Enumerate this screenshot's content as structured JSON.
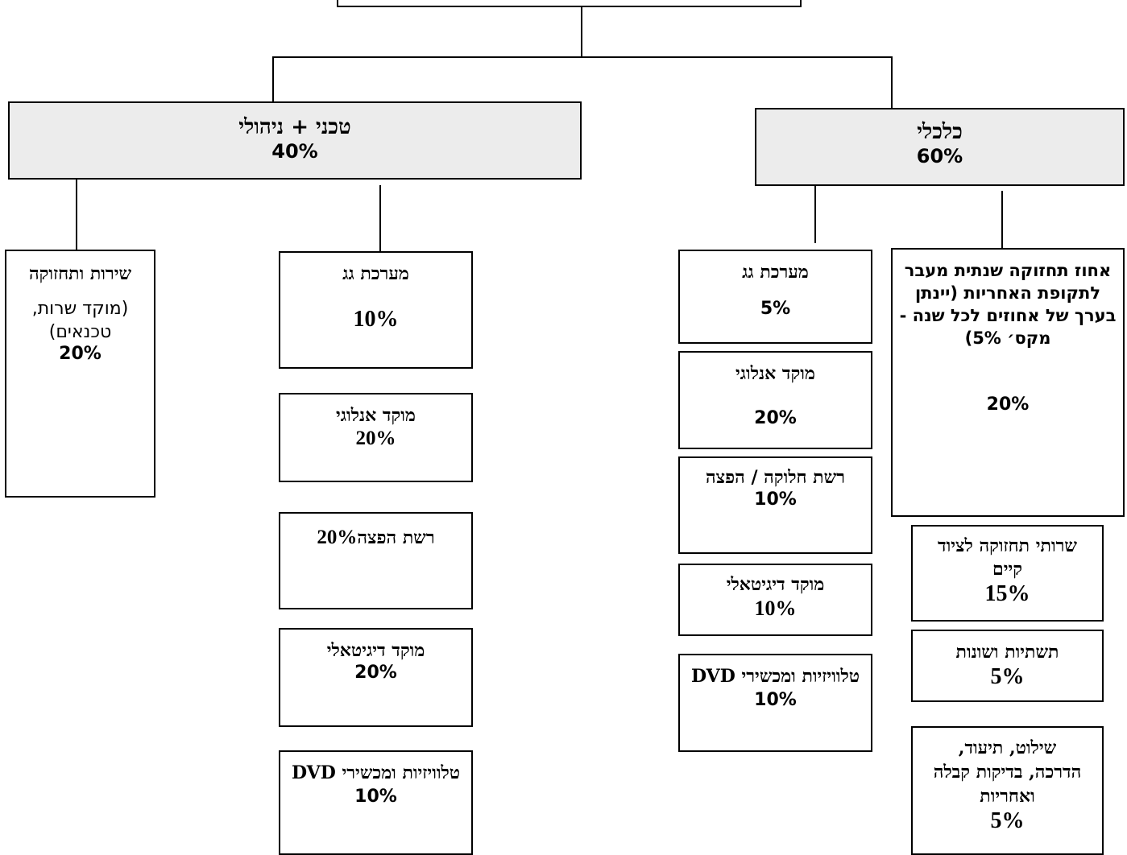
{
  "root": {
    "title": ""
  },
  "economic": {
    "title": "כלכלי",
    "pct": "60%",
    "items": [
      {
        "title": "אחוז תחזוקה שנתית מעבר לתקופת האחריות (יינתן בערך של אחוזים לכל שנה - מקס׳ 5%)",
        "pct": "20%"
      },
      {
        "title": "שרותי תחזוקה לציוד קיים",
        "pct": "15%"
      },
      {
        "title": "תשתיות ושונות",
        "pct": "5%"
      },
      {
        "title": "שילוט, תיעוד, הדרכה, בדיקות קבלה ואחריות",
        "pct": "5%"
      },
      {
        "title": "מערכת גג",
        "pct": "5%"
      },
      {
        "title": "מוקד אנלוגי",
        "pct": "20%"
      },
      {
        "title": "רשת חלוקה / הפצה",
        "pct": "10%"
      },
      {
        "title": "מוקד דיגיטאלי",
        "pct": "10%"
      },
      {
        "title": "טלוויזיות ומכשירי DVD",
        "pct": "10%"
      }
    ]
  },
  "technical": {
    "title": "טכני + ניהולי",
    "pct": "40%",
    "items": [
      {
        "title": "מערכת גג",
        "pct": "10%"
      },
      {
        "title": "מוקד אנלוגי",
        "pct": "20%"
      },
      {
        "title": "רשת הפצה",
        "pct": "20%"
      },
      {
        "title": "מוקד דיגיטאלי",
        "pct": "20%"
      },
      {
        "title": "טלוויזיות ומכשירי DVD",
        "pct": "10%"
      },
      {
        "title": "שירות ותחזוקה",
        "note": "(מוקד שרות, טכנאים)",
        "pct": "20%"
      }
    ]
  }
}
